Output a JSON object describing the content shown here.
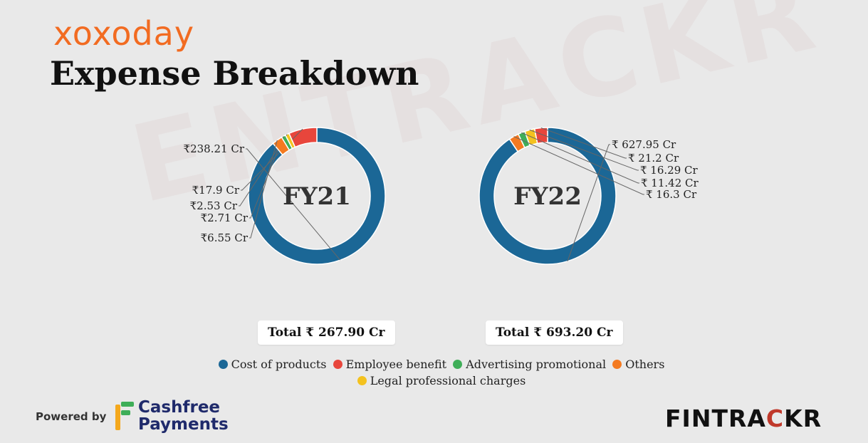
{
  "brand": {
    "logo_text": "xoxoday",
    "logo_color": "#f26b21"
  },
  "title": "Expense Breakdown",
  "watermark": "ENTRACKR",
  "chart_data": [
    {
      "type": "pie",
      "center_label": "FY21",
      "categories": [
        "Cost of products",
        "Employee benefit",
        "Legal professional charges",
        "Advertising promotional",
        "Others"
      ],
      "values": [
        238.21,
        17.9,
        2.53,
        2.71,
        6.55
      ],
      "labels": [
        "₹238.21 Cr",
        "₹17.9 Cr",
        "₹2.53 Cr",
        "₹2.71 Cr",
        "₹6.55 Cr"
      ],
      "colors": [
        "#1b6796",
        "#e8463c",
        "#f4c21f",
        "#3fae58",
        "#f47a20"
      ],
      "total_label": "Total ₹ 267.90 Cr"
    },
    {
      "type": "pie",
      "center_label": "FY22",
      "categories": [
        "Cost of products",
        "Employee benefit",
        "Legal professional charges",
        "Advertising promotional",
        "Others"
      ],
      "values": [
        627.95,
        21.2,
        16.29,
        11.42,
        16.3
      ],
      "labels": [
        "₹ 627.95 Cr",
        "₹ 21.2 Cr",
        "₹ 16.29 Cr",
        "₹ 11.42 Cr",
        "₹ 16.3 Cr"
      ],
      "colors": [
        "#1b6796",
        "#e8463c",
        "#f4c21f",
        "#3fae58",
        "#f47a20"
      ],
      "total_label": "Total ₹ 693.20 Cr"
    }
  ],
  "legend": [
    {
      "label": "Cost of products",
      "color": "#1b6796"
    },
    {
      "label": "Employee benefit",
      "color": "#e8463c"
    },
    {
      "label": "Advertising promotional",
      "color": "#3fae58"
    },
    {
      "label": "Others",
      "color": "#f47a20"
    },
    {
      "label": "Legal professional charges",
      "color": "#f4c21f"
    }
  ],
  "footer": {
    "powered_by": "Powered by",
    "partner_line1": "Cashfree",
    "partner_line2": "Payments",
    "fintrackr_part1": "FINTRA",
    "fintrackr_part2": "C",
    "fintrackr_part3": "KR"
  }
}
